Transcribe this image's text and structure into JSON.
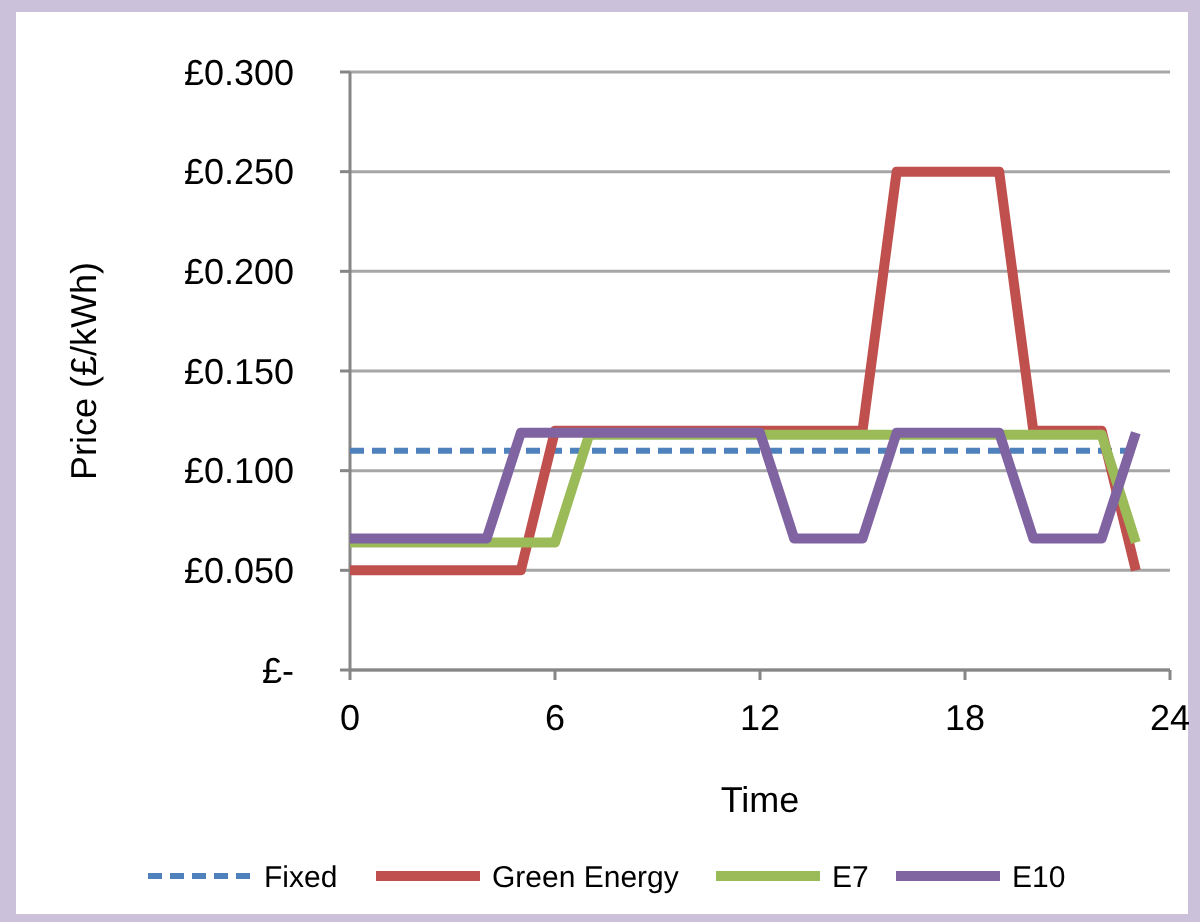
{
  "chart_data": {
    "type": "line",
    "xlabel": "Time",
    "ylabel": "Price (£/kWh)",
    "xlim": [
      0,
      24
    ],
    "xticks": [
      0,
      6,
      12,
      18,
      24
    ],
    "ylim": [
      0,
      0.3
    ],
    "yticks": [
      {
        "value": 0,
        "label": "£-"
      },
      {
        "value": 0.05,
        "label": "£0.050"
      },
      {
        "value": 0.1,
        "label": "£0.100"
      },
      {
        "value": 0.15,
        "label": "£0.150"
      },
      {
        "value": 0.2,
        "label": "£0.200"
      },
      {
        "value": 0.25,
        "label": "£0.250"
      },
      {
        "value": 0.3,
        "label": "£0.300"
      }
    ],
    "grid": "y",
    "legend": "bottom",
    "marker": "none",
    "series": [
      {
        "name": "Fixed",
        "color": "#4f81bd",
        "line_style": "dashed",
        "x": [
          0,
          23
        ],
        "values": [
          0.11,
          0.11
        ]
      },
      {
        "name": "Green Energy",
        "color": "#c0504d",
        "line_style": "solid",
        "x": [
          0,
          5,
          6,
          15,
          16,
          19,
          20,
          22,
          23
        ],
        "values": [
          0.05,
          0.05,
          0.12,
          0.12,
          0.25,
          0.25,
          0.12,
          0.12,
          0.05
        ]
      },
      {
        "name": "E7",
        "color": "#9bbb59",
        "line_style": "solid",
        "x": [
          0,
          6,
          7,
          22,
          23
        ],
        "values": [
          0.064,
          0.064,
          0.118,
          0.118,
          0.064
        ]
      },
      {
        "name": "E10",
        "color": "#8064a2",
        "line_style": "solid",
        "x": [
          0,
          4,
          5,
          12,
          13,
          15,
          16,
          19,
          20,
          22,
          23
        ],
        "values": [
          0.066,
          0.066,
          0.119,
          0.119,
          0.066,
          0.066,
          0.119,
          0.119,
          0.066,
          0.066,
          0.119
        ]
      }
    ]
  }
}
